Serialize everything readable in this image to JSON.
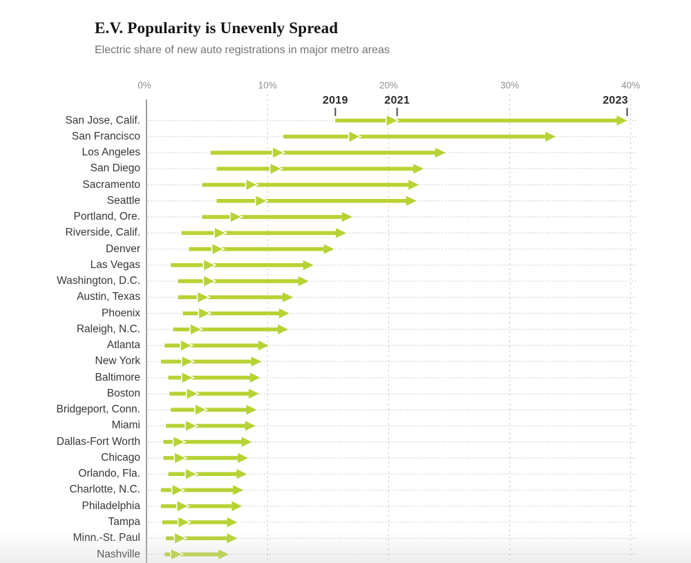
{
  "header": {
    "title": "E.V. Popularity is Unevenly Spread",
    "subtitle": "Electric share of new auto registrations in major metro areas"
  },
  "colors": {
    "arrow_green": "#b5d334",
    "axis_line": "#9c9c9c",
    "gridline": "#d4d4d4",
    "leader_dots": "#c9c9c9",
    "year_tick": "#4a4a4a",
    "title_text": "#121212",
    "subtitle_text": "#727272",
    "tick_label_text": "#8e8e8e",
    "city_label_text": "#363636"
  },
  "chart_data": {
    "type": "arrow-range",
    "title": "E.V. Popularity is Unevenly Spread",
    "subtitle": "Electric share of new auto registrations in major metro areas",
    "unit": "percent",
    "xlim": [
      0,
      42
    ],
    "grid": true,
    "x_ticks": [
      {
        "label": "0%",
        "value": 0
      },
      {
        "label": "10%",
        "value": 10
      },
      {
        "label": "20%",
        "value": 20
      },
      {
        "label": "30%",
        "value": 30
      },
      {
        "label": "40%",
        "value": 40
      }
    ],
    "series_years": [
      "2019",
      "2021",
      "2023"
    ],
    "year_markers": [
      {
        "label": "2019",
        "value": 15.6,
        "align": "center"
      },
      {
        "label": "2021",
        "value": 20.7,
        "align": "center"
      },
      {
        "label": "2023",
        "value": 39.7,
        "align": "right"
      }
    ],
    "cities": [
      {
        "name": "San Jose, Calif.",
        "values": [
          15.6,
          20.7,
          39.7
        ]
      },
      {
        "name": "San Francisco",
        "values": [
          11.3,
          17.6,
          33.8
        ]
      },
      {
        "name": "Los Angeles",
        "values": [
          5.3,
          11.3,
          24.7
        ]
      },
      {
        "name": "San Diego",
        "values": [
          5.8,
          11.1,
          22.9
        ]
      },
      {
        "name": "Sacramento",
        "values": [
          4.6,
          9.1,
          22.5
        ]
      },
      {
        "name": "Seattle",
        "values": [
          5.8,
          9.9,
          22.3
        ]
      },
      {
        "name": "Portland, Ore.",
        "values": [
          4.6,
          7.8,
          17.0
        ]
      },
      {
        "name": "Riverside, Calif.",
        "values": [
          2.9,
          6.5,
          16.5
        ]
      },
      {
        "name": "Denver",
        "values": [
          3.5,
          6.3,
          15.5
        ]
      },
      {
        "name": "Las Vegas",
        "values": [
          2.0,
          5.6,
          13.8
        ]
      },
      {
        "name": "Washington, D.C.",
        "values": [
          2.6,
          5.6,
          13.4
        ]
      },
      {
        "name": "Austin, Texas",
        "values": [
          2.6,
          5.1,
          12.1
        ]
      },
      {
        "name": "Phoenix",
        "values": [
          3.0,
          5.2,
          11.8
        ]
      },
      {
        "name": "Raleigh, N.C.",
        "values": [
          2.2,
          4.5,
          11.7
        ]
      },
      {
        "name": "Atlanta",
        "values": [
          1.5,
          3.7,
          10.1
        ]
      },
      {
        "name": "New York",
        "values": [
          1.2,
          3.8,
          9.5
        ]
      },
      {
        "name": "Baltimore",
        "values": [
          1.8,
          3.8,
          9.4
        ]
      },
      {
        "name": "Boston",
        "values": [
          1.9,
          4.2,
          9.3
        ]
      },
      {
        "name": "Bridgeport, Conn.",
        "values": [
          2.0,
          4.9,
          9.1
        ]
      },
      {
        "name": "Miami",
        "values": [
          1.6,
          4.1,
          9.0
        ]
      },
      {
        "name": "Dallas-Fort Worth",
        "values": [
          1.4,
          3.1,
          8.7
        ]
      },
      {
        "name": "Chicago",
        "values": [
          1.4,
          3.2,
          8.4
        ]
      },
      {
        "name": "Orlando, Fla.",
        "values": [
          1.8,
          4.1,
          8.3
        ]
      },
      {
        "name": "Charlotte, N.C.",
        "values": [
          1.2,
          3.0,
          8.0
        ]
      },
      {
        "name": "Philadelphia",
        "values": [
          1.2,
          3.4,
          7.9
        ]
      },
      {
        "name": "Tampa",
        "values": [
          1.3,
          3.5,
          7.5
        ]
      },
      {
        "name": "Minn.-St. Paul",
        "values": [
          1.6,
          3.2,
          7.5
        ]
      },
      {
        "name": "Nashville",
        "values": [
          1.5,
          2.9,
          6.8
        ]
      }
    ]
  }
}
